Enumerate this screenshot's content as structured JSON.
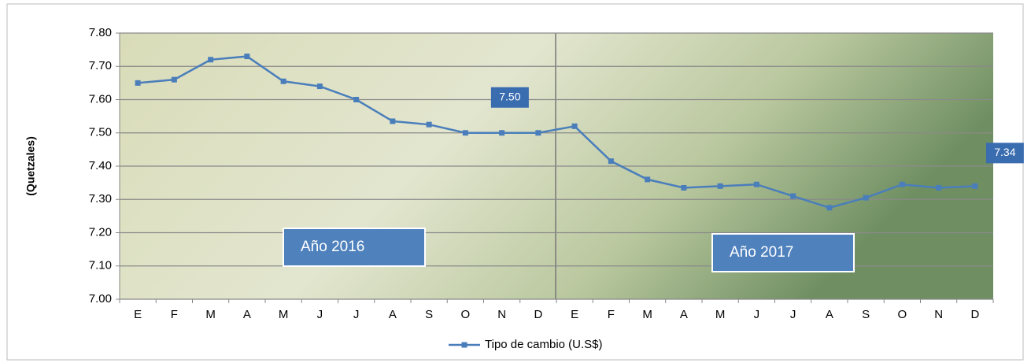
{
  "chart_data": {
    "type": "line",
    "y_axis_label": "(Quetzales)",
    "categories": [
      "E",
      "F",
      "M",
      "A",
      "M",
      "J",
      "J",
      "A",
      "S",
      "O",
      "N",
      "D",
      "E",
      "F",
      "M",
      "A",
      "M",
      "J",
      "J",
      "A",
      "S",
      "O",
      "N",
      "D"
    ],
    "series": [
      {
        "name": "Tipo de cambio (U.S$)",
        "color": "#4a7ebb",
        "values": [
          7.65,
          7.66,
          7.72,
          7.73,
          7.655,
          7.64,
          7.6,
          7.535,
          7.525,
          7.5,
          7.5,
          7.5,
          7.52,
          7.415,
          7.36,
          7.335,
          7.34,
          7.345,
          7.31,
          7.275,
          7.305,
          7.345,
          7.335,
          7.34
        ],
        "value_labels": [
          null,
          null,
          null,
          null,
          null,
          null,
          null,
          null,
          null,
          null,
          null,
          "7.50",
          null,
          null,
          null,
          null,
          null,
          null,
          null,
          null,
          null,
          null,
          null,
          "7.34"
        ]
      }
    ],
    "annotations": [
      "Año 2016",
      "Año 2017"
    ],
    "ylim": [
      7.0,
      7.8
    ],
    "yticks": [
      {
        "value": 7.0,
        "label": "7.00"
      },
      {
        "value": 7.1,
        "label": "7.10"
      },
      {
        "value": 7.2,
        "label": "7.20"
      },
      {
        "value": 7.3,
        "label": "7.30"
      },
      {
        "value": 7.4,
        "label": "7.40"
      },
      {
        "value": 7.5,
        "label": "7.50"
      },
      {
        "value": 7.6,
        "label": "7.60"
      },
      {
        "value": 7.7,
        "label": "7.70"
      },
      {
        "value": 7.8,
        "label": "7.80"
      }
    ],
    "grid": true,
    "legend": "bottom"
  }
}
